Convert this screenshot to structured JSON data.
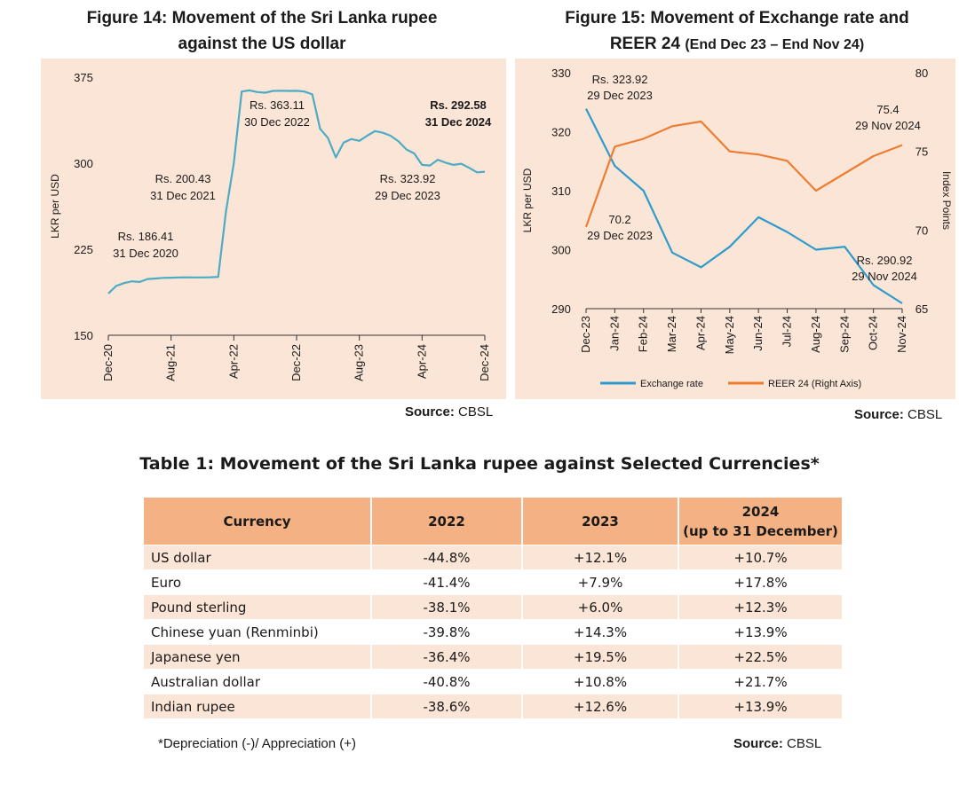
{
  "figure14": {
    "title_line1": "Figure 14: Movement of the Sri Lanka rupee",
    "title_line2": "against the US dollar",
    "source_label": "Source:",
    "source_value": "CBSL",
    "chart_data": {
      "type": "line",
      "ylabel": "LKR per USD",
      "ylim": [
        150,
        375
      ],
      "yticks": [
        150,
        225,
        300,
        375
      ],
      "xticks": [
        "Dec-20",
        "Aug-21",
        "Apr-22",
        "Dec-22",
        "Aug-23",
        "Apr-24",
        "Dec-24"
      ],
      "series": [
        {
          "color": "#4bacc6",
          "x": [
            "Dec-20",
            "Jan-21",
            "Feb-21",
            "Mar-21",
            "Apr-21",
            "May-21",
            "Jun-21",
            "Jul-21",
            "Aug-21",
            "Sep-21",
            "Oct-21",
            "Nov-21",
            "Dec-21",
            "Jan-22",
            "Feb-22",
            "Mar-22",
            "Apr-22",
            "May-22",
            "Jun-22",
            "Jul-22",
            "Aug-22",
            "Sep-22",
            "Oct-22",
            "Nov-22",
            "Dec-22",
            "Jan-23",
            "Feb-23",
            "Mar-23",
            "Apr-23",
            "May-23",
            "Jun-23",
            "Jul-23",
            "Aug-23",
            "Sep-23",
            "Oct-23",
            "Nov-23",
            "Dec-23",
            "Jan-24",
            "Feb-24",
            "Mar-24",
            "Apr-24",
            "May-24",
            "Jun-24",
            "Jul-24",
            "Aug-24",
            "Sep-24",
            "Oct-24",
            "Nov-24",
            "Dec-24"
          ],
          "y": [
            186.4,
            193.0,
            195.5,
            197.0,
            196.5,
            199.0,
            199.5,
            200.0,
            200.2,
            200.4,
            200.5,
            200.4,
            200.4,
            200.6,
            200.9,
            258.0,
            300.0,
            362.5,
            363.5,
            362.0,
            361.5,
            363.0,
            363.2,
            363.0,
            363.1,
            362.5,
            360.0,
            330.0,
            322.0,
            305.0,
            318.0,
            321.0,
            319.5,
            324.0,
            328.0,
            326.5,
            323.9,
            319.0,
            312.0,
            308.5,
            298.5,
            298.0,
            303.0,
            300.5,
            298.5,
            299.5,
            296.0,
            292.0,
            292.6
          ]
        }
      ],
      "annotations": [
        {
          "label": "Rs. 186.41",
          "date": "31 Dec 2020"
        },
        {
          "label": "Rs. 200.43",
          "date": "31 Dec 2021"
        },
        {
          "label": "Rs. 363.11",
          "date": "30 Dec 2022"
        },
        {
          "label": "Rs. 323.92",
          "date": "29 Dec 2023"
        },
        {
          "label": "Rs. 292.58",
          "date": "31 Dec 2024"
        }
      ]
    }
  },
  "figure15": {
    "title_line1": "Figure 15: Movement of Exchange rate and",
    "title_line2": "REER 24",
    "title_sub": "(End Dec 23 – End Nov 24)",
    "source_label": "Source:",
    "source_value": "CBSL",
    "chart_data": {
      "type": "line",
      "ylabel": "LKR per USD",
      "y2label": "Index Points",
      "ylim": [
        290,
        330
      ],
      "y2lim": [
        65,
        80
      ],
      "yticks": [
        290,
        300,
        310,
        320,
        330
      ],
      "y2ticks": [
        65,
        70,
        75,
        80
      ],
      "xticks": [
        "Dec-23",
        "Jan-24",
        "Feb-24",
        "Mar-24",
        "Apr-24",
        "May-24",
        "Jun-24",
        "Jul-24",
        "Aug-24",
        "Sep-24",
        "Oct-24",
        "Nov-24"
      ],
      "series": [
        {
          "name": "Exchange rate",
          "axis": "left",
          "color": "#2e9bcd",
          "x": [
            "Dec-23",
            "Jan-24",
            "Feb-24",
            "Mar-24",
            "Apr-24",
            "May-24",
            "Jun-24",
            "Jul-24",
            "Aug-24",
            "Sep-24",
            "Oct-24",
            "Nov-24"
          ],
          "y": [
            323.9,
            314.2,
            310.0,
            299.5,
            297.0,
            300.5,
            305.5,
            303.0,
            300.0,
            300.5,
            294.0,
            290.9
          ]
        },
        {
          "name": "REER 24 (Right Axis)",
          "axis": "right",
          "color": "#ed7d31",
          "x": [
            "Dec-23",
            "Jan-24",
            "Feb-24",
            "Mar-24",
            "Apr-24",
            "May-24",
            "Jun-24",
            "Jul-24",
            "Aug-24",
            "Sep-24",
            "Oct-24",
            "Nov-24"
          ],
          "y": [
            70.2,
            75.3,
            75.8,
            76.6,
            76.9,
            75.0,
            74.8,
            74.4,
            72.5,
            73.6,
            74.7,
            75.4
          ]
        }
      ],
      "annotations": [
        {
          "label": "Rs. 323.92",
          "date": "29 Dec 2023"
        },
        {
          "label": "70.2",
          "date": "29 Dec 2023"
        },
        {
          "label": "75.4",
          "date": "29 Nov 2024"
        },
        {
          "label": "Rs. 290.92",
          "date": "29 Nov 2024"
        }
      ]
    }
  },
  "table1": {
    "title": "Table 1:  Movement of the Sri Lanka rupee against Selected Currencies*",
    "headers": [
      "Currency",
      "2022",
      "2023",
      "2024",
      "(up to 31 December)"
    ],
    "rows": [
      [
        "US dollar",
        "-44.8%",
        "+12.1%",
        "+10.7%"
      ],
      [
        "Euro",
        "-41.4%",
        "+7.9%",
        "+17.8%"
      ],
      [
        "Pound sterling",
        "-38.1%",
        "+6.0%",
        "+12.3%"
      ],
      [
        "Chinese yuan (Renminbi)",
        "-39.8%",
        "+14.3%",
        "+13.9%"
      ],
      [
        "Japanese yen",
        "-36.4%",
        "+19.5%",
        "+22.5%"
      ],
      [
        "Australian dollar",
        "-40.8%",
        "+10.8%",
        "+21.7%"
      ],
      [
        "Indian rupee",
        "-38.6%",
        "+12.6%",
        "+13.9%"
      ]
    ],
    "footnote": "*Depreciation (-)/ Appreciation (+)",
    "source_label": "Source:",
    "source_value": "CBSL"
  }
}
